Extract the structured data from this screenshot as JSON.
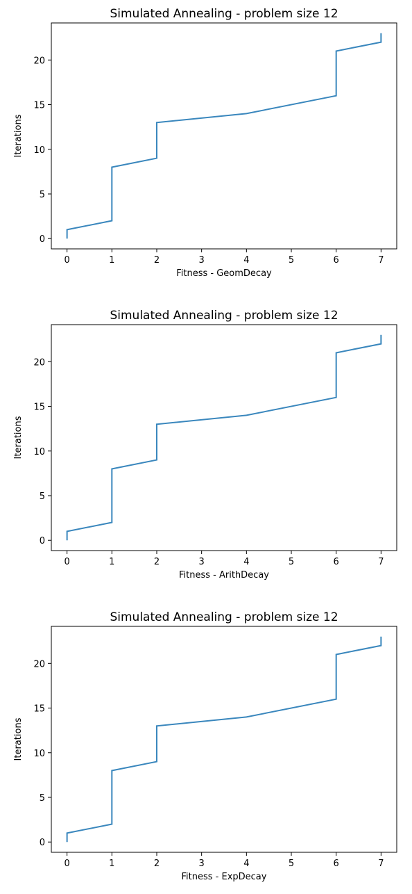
{
  "chart_data": [
    {
      "type": "line",
      "title": "Simulated Annealing - problem size 12",
      "xlabel": "Fitness - GeomDecay",
      "ylabel": "Iterations",
      "xlim": [
        -0.35,
        7.35
      ],
      "ylim": [
        -1.15,
        24.15
      ],
      "xticks": [
        0,
        1,
        2,
        3,
        4,
        5,
        6,
        7
      ],
      "yticks": [
        0,
        5,
        10,
        15,
        20
      ],
      "grid": false,
      "color": "#3a87bd",
      "series": [
        {
          "x": [
            0,
            0,
            1,
            1,
            2,
            2,
            4,
            6,
            6,
            7,
            7
          ],
          "y": [
            0,
            1,
            2,
            8,
            9,
            13,
            14,
            16,
            21,
            22,
            23
          ]
        }
      ]
    },
    {
      "type": "line",
      "title": "Simulated Annealing - problem size 12",
      "xlabel": "Fitness - ArithDecay",
      "ylabel": "Iterations",
      "xlim": [
        -0.35,
        7.35
      ],
      "ylim": [
        -1.15,
        24.15
      ],
      "xticks": [
        0,
        1,
        2,
        3,
        4,
        5,
        6,
        7
      ],
      "yticks": [
        0,
        5,
        10,
        15,
        20
      ],
      "grid": false,
      "color": "#3a87bd",
      "series": [
        {
          "x": [
            0,
            0,
            1,
            1,
            2,
            2,
            4,
            6,
            6,
            7,
            7
          ],
          "y": [
            0,
            1,
            2,
            8,
            9,
            13,
            14,
            16,
            21,
            22,
            23
          ]
        }
      ]
    },
    {
      "type": "line",
      "title": "Simulated Annealing - problem size 12",
      "xlabel": "Fitness - ExpDecay",
      "ylabel": "Iterations",
      "xlim": [
        -0.35,
        7.35
      ],
      "ylim": [
        -1.15,
        24.15
      ],
      "xticks": [
        0,
        1,
        2,
        3,
        4,
        5,
        6,
        7
      ],
      "yticks": [
        0,
        5,
        10,
        15,
        20
      ],
      "grid": false,
      "color": "#3a87bd",
      "series": [
        {
          "x": [
            0,
            0,
            1,
            1,
            2,
            2,
            4,
            6,
            6,
            7,
            7
          ],
          "y": [
            0,
            1,
            2,
            8,
            9,
            13,
            14,
            16,
            21,
            22,
            23
          ]
        }
      ]
    }
  ]
}
